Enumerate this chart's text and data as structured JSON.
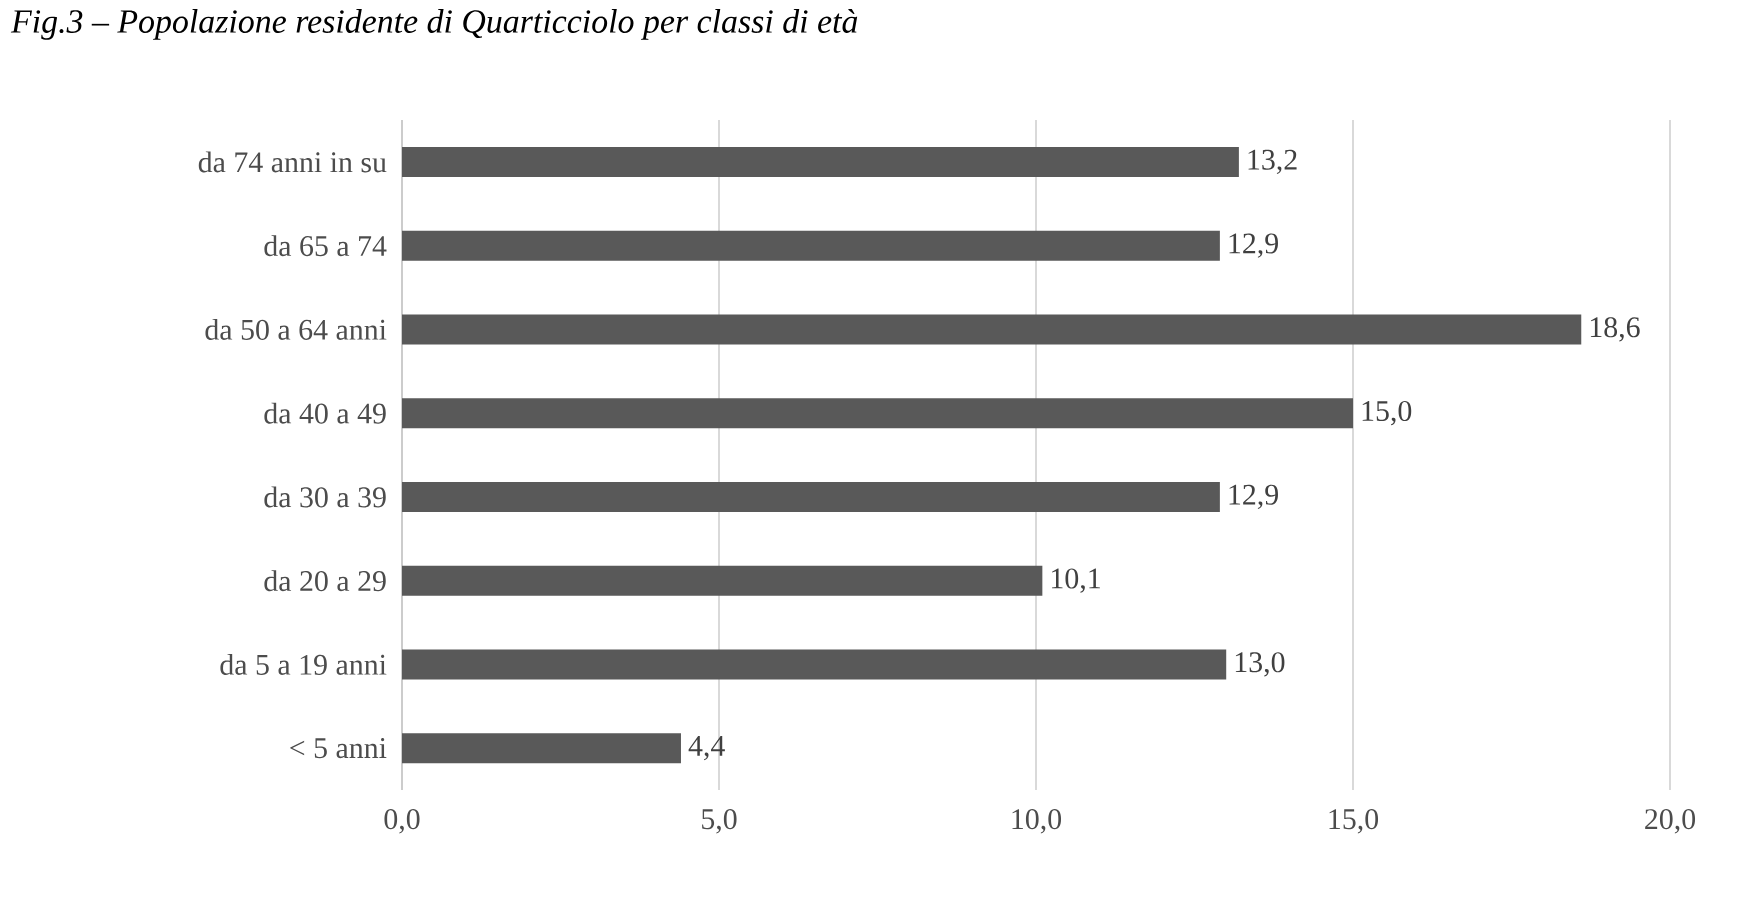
{
  "chart_data": {
    "type": "bar",
    "orientation": "horizontal",
    "title": "Fig.3 – Popolazione residente di Quarticciolo per classi di età",
    "categories": [
      "da 74 anni in su",
      "da 65 a 74",
      "da 50 a 64 anni",
      "da 40 a 49",
      "da 30 a 39",
      "da 20 a 29",
      "da 5 a 19 anni",
      "< 5 anni"
    ],
    "values": [
      13.2,
      12.9,
      18.6,
      15.0,
      12.9,
      10.1,
      13.0,
      4.4
    ],
    "value_labels": [
      "13,2",
      "12,9",
      "18,6",
      "15,0",
      "12,9",
      "10,1",
      "13,0",
      "4,4"
    ],
    "color": "#595959",
    "xlim": [
      0,
      20
    ],
    "xticks": [
      {
        "value": 0,
        "label": "0,0"
      },
      {
        "value": 5,
        "label": "5,0"
      },
      {
        "value": 10,
        "label": "10,0"
      },
      {
        "value": 15,
        "label": "15,0"
      },
      {
        "value": 20,
        "label": "20,0"
      }
    ],
    "grid": "x"
  }
}
